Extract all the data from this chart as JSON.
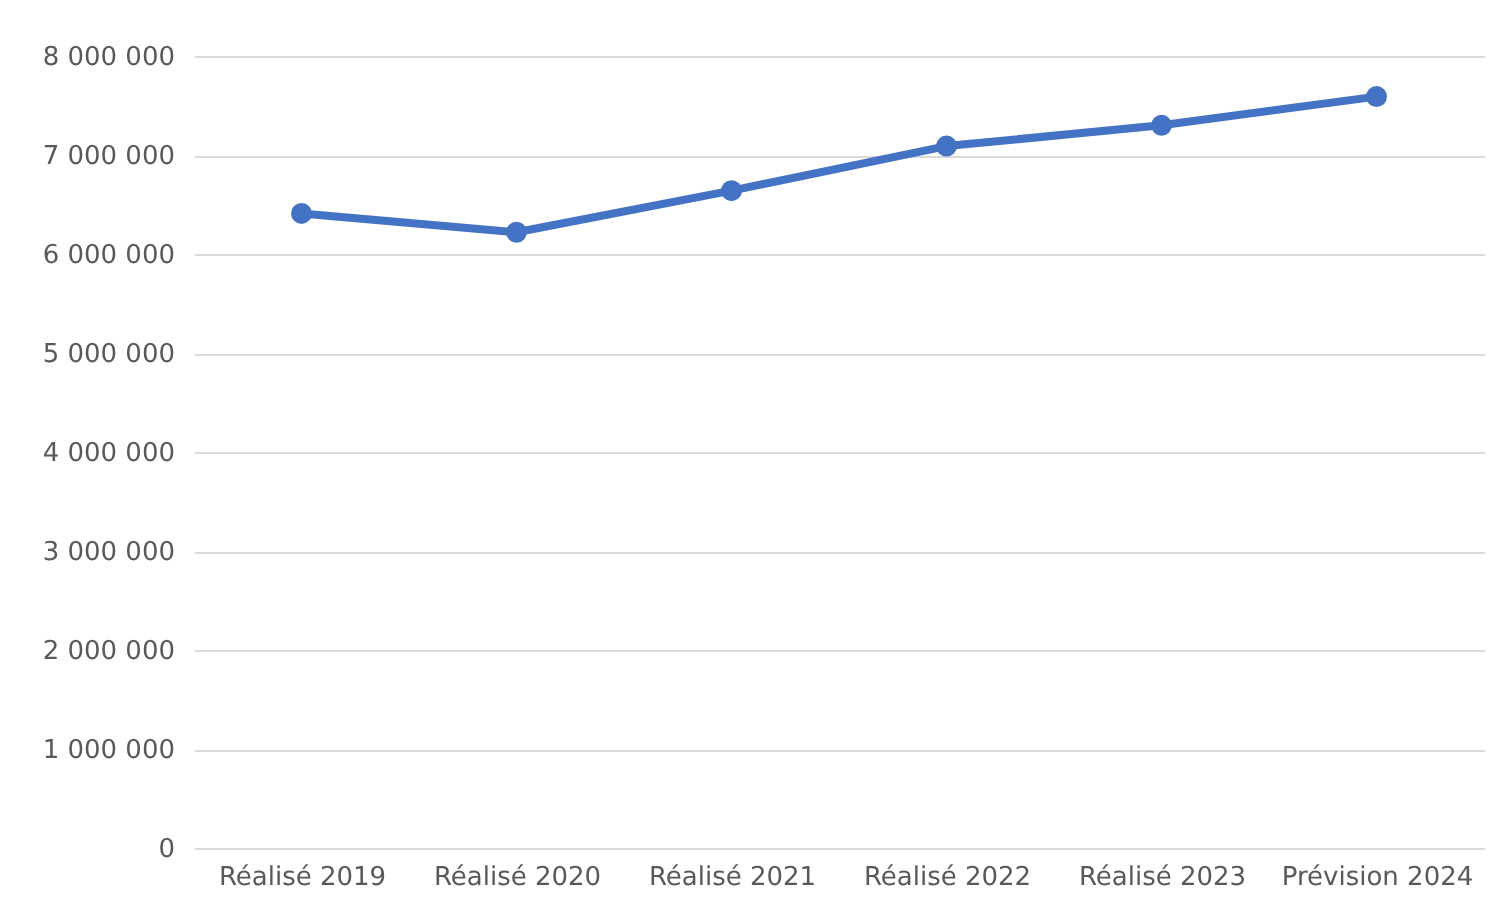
{
  "chart_data": {
    "type": "line",
    "categories": [
      "Réalisé 2019",
      "Réalisé 2020",
      "Réalisé 2021",
      "Réalisé 2022",
      "Réalisé 2023",
      "Prévision 2024"
    ],
    "series": [
      {
        "color": "#4472c4",
        "values": [
          6410000,
          6220000,
          6640000,
          7090000,
          7300000,
          7590000
        ]
      }
    ],
    "ylim": [
      0,
      8000000
    ],
    "yticks": [
      {
        "value": 0,
        "label": "0"
      },
      {
        "value": 1000000,
        "label": "1 000 000"
      },
      {
        "value": 2000000,
        "label": "2 000 000"
      },
      {
        "value": 3000000,
        "label": "3 000 000"
      },
      {
        "value": 4000000,
        "label": "4 000 000"
      },
      {
        "value": 5000000,
        "label": "5 000 000"
      },
      {
        "value": 6000000,
        "label": "6 000 000"
      },
      {
        "value": 7000000,
        "label": "7 000 000"
      },
      {
        "value": 8000000,
        "label": "8 000 000"
      }
    ],
    "grid": "y",
    "marker": "circle",
    "line_style": "solid",
    "legend": false
  }
}
